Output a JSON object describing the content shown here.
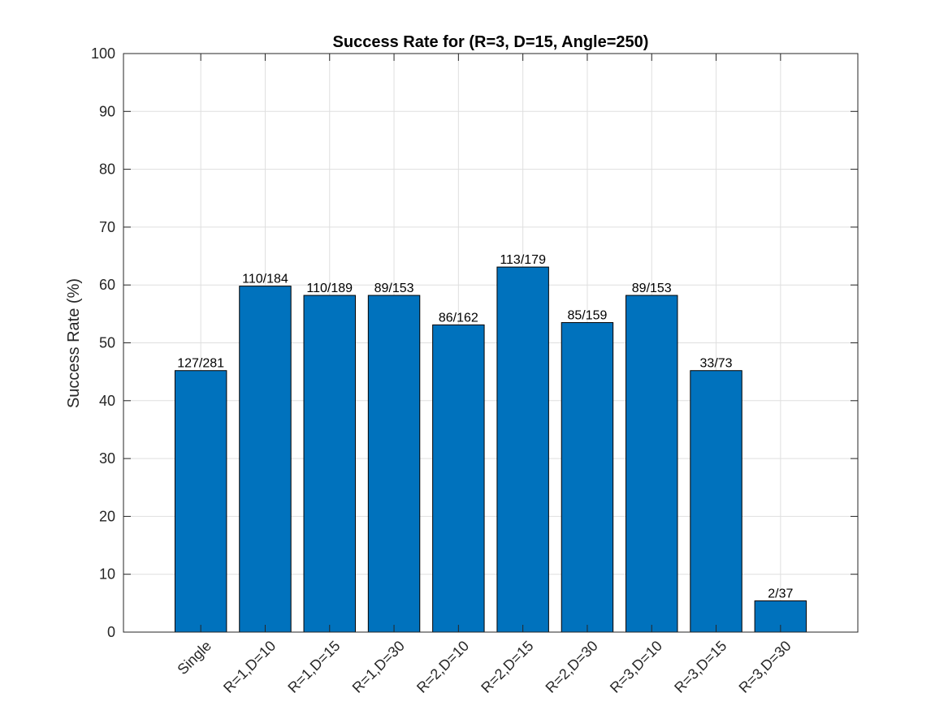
{
  "chart_data": {
    "type": "bar",
    "title": "Success Rate for (R=3, D=15, Angle=250)",
    "xlabel": "",
    "ylabel": "Success Rate (%)",
    "ylim": [
      0,
      100
    ],
    "yticks": [
      0,
      10,
      20,
      30,
      40,
      50,
      60,
      70,
      80,
      90,
      100
    ],
    "grid": true,
    "bar_color": "#0072BD",
    "categories": [
      "Single",
      "R=1,D=10",
      "R=1,D=15",
      "R=1,D=30",
      "R=2,D=10",
      "R=2,D=15",
      "R=2,D=30",
      "R=3,D=10",
      "R=3,D=15",
      "R=3,D=30"
    ],
    "values": [
      45.2,
      59.8,
      58.2,
      58.2,
      53.1,
      63.1,
      53.5,
      58.2,
      45.2,
      5.4
    ],
    "data_labels": [
      "127/281",
      "110/184",
      "110/189",
      "89/153",
      "86/162",
      "113/179",
      "85/159",
      "89/153",
      "33/73",
      "2/37"
    ]
  }
}
